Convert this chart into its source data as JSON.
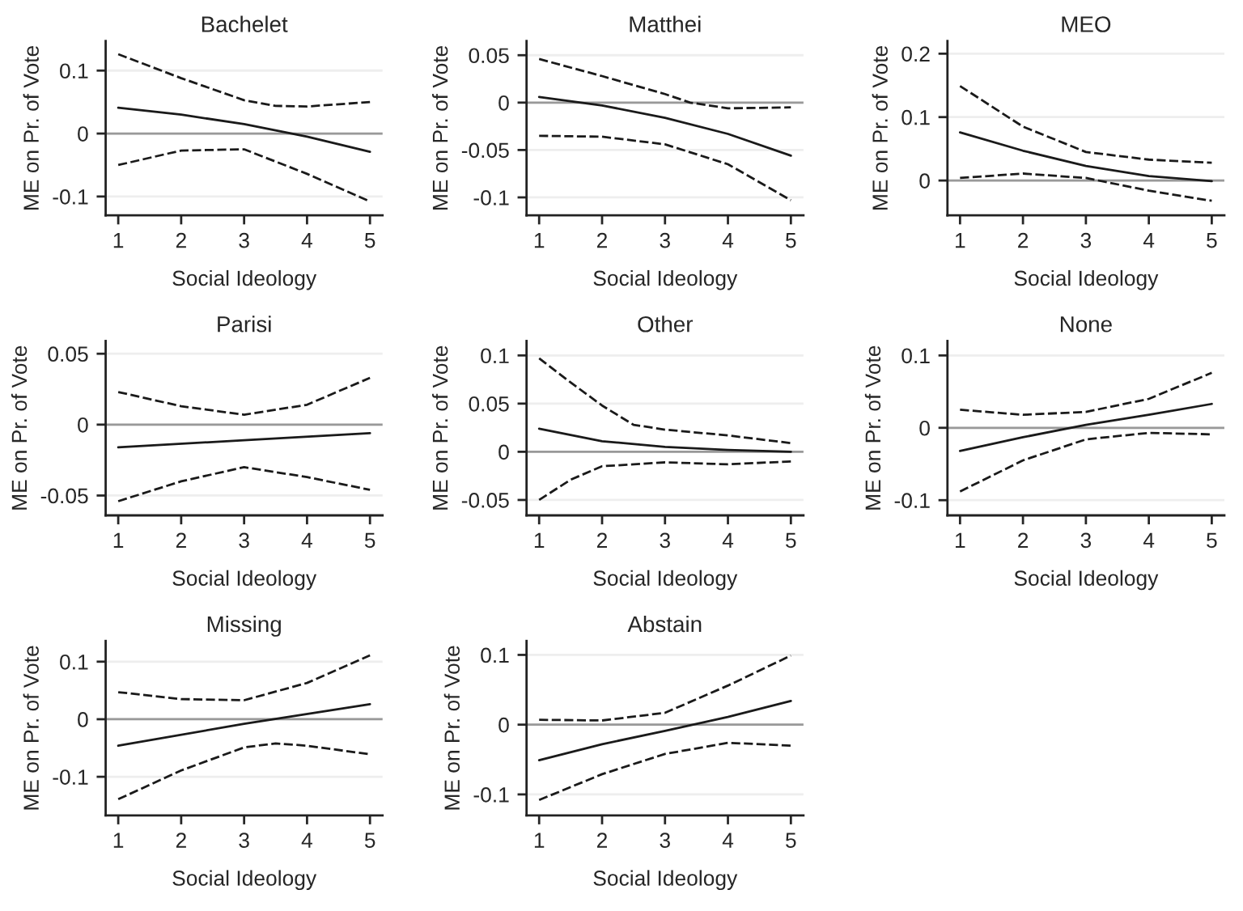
{
  "chart_data": [
    {
      "type": "line",
      "title": "Bachelet",
      "xlabel": "Social Ideology",
      "ylabel": "ME on Pr. of Vote",
      "xlim": [
        0.8,
        5.2
      ],
      "xticks": [
        1,
        2,
        3,
        4,
        5
      ],
      "ylim": [
        -0.13,
        0.147
      ],
      "yticks": [
        -0.1,
        0,
        0.1
      ],
      "grid": "y",
      "ref_lines": [
        {
          "axis": "y",
          "value": 0,
          "color": "#999999"
        }
      ],
      "series": [
        {
          "color": "#1a1a1a",
          "line_style": "solid",
          "x": [
            1,
            2,
            3,
            4,
            5
          ],
          "values": [
            0.041,
            0.03,
            0.015,
            -0.005,
            -0.029
          ]
        },
        {
          "color": "#1a1a1a",
          "line_style": "dashed",
          "x": [
            1,
            2,
            3,
            3.5,
            4,
            5
          ],
          "values": [
            0.126,
            0.088,
            0.053,
            0.044,
            0.043,
            0.05
          ]
        },
        {
          "color": "#1a1a1a",
          "line_style": "dashed",
          "x": [
            1,
            2,
            3,
            4,
            5
          ],
          "values": [
            -0.05,
            -0.027,
            -0.025,
            -0.064,
            -0.108
          ]
        }
      ]
    },
    {
      "type": "line",
      "title": "Matthei",
      "xlabel": "Social Ideology",
      "ylabel": "ME on Pr. of Vote",
      "xlim": [
        0.8,
        5.2
      ],
      "xticks": [
        1,
        2,
        3,
        4,
        5
      ],
      "ylim": [
        -0.119,
        0.065
      ],
      "yticks": [
        -0.1,
        -0.05,
        0,
        0.05
      ],
      "grid": "y",
      "ref_lines": [
        {
          "axis": "y",
          "value": 0,
          "color": "#999999"
        }
      ],
      "series": [
        {
          "color": "#1a1a1a",
          "line_style": "solid",
          "x": [
            1,
            2,
            3,
            4,
            5
          ],
          "values": [
            0.006,
            -0.003,
            -0.016,
            -0.033,
            -0.056
          ]
        },
        {
          "color": "#1a1a1a",
          "line_style": "dashed",
          "x": [
            1,
            2,
            3,
            3.4,
            4,
            5
          ],
          "values": [
            0.046,
            0.028,
            0.009,
            0,
            -0.006,
            -0.005
          ]
        },
        {
          "color": "#1a1a1a",
          "line_style": "dashed",
          "x": [
            1,
            2,
            3,
            4,
            5
          ],
          "values": [
            -0.035,
            -0.036,
            -0.044,
            -0.065,
            -0.103
          ]
        }
      ]
    },
    {
      "type": "line",
      "title": "MEO",
      "xlabel": "Social Ideology",
      "ylabel": "ME on Pr. of Vote",
      "xlim": [
        0.8,
        5.2
      ],
      "xticks": [
        1,
        2,
        3,
        4,
        5
      ],
      "ylim": [
        -0.055,
        0.22
      ],
      "yticks": [
        0,
        0.1,
        0.2
      ],
      "grid": "y",
      "ref_lines": [
        {
          "axis": "y",
          "value": 0,
          "color": "#999999"
        }
      ],
      "series": [
        {
          "color": "#1a1a1a",
          "line_style": "solid",
          "x": [
            1,
            2,
            3,
            4,
            5
          ],
          "values": [
            0.076,
            0.047,
            0.023,
            0.007,
            -0.001
          ]
        },
        {
          "color": "#1a1a1a",
          "line_style": "dashed",
          "x": [
            1,
            2,
            3,
            4,
            5
          ],
          "values": [
            0.149,
            0.085,
            0.045,
            0.033,
            0.028
          ]
        },
        {
          "color": "#1a1a1a",
          "line_style": "dashed",
          "x": [
            1,
            2,
            3,
            4,
            5
          ],
          "values": [
            0.004,
            0.011,
            0.004,
            -0.016,
            -0.032
          ]
        }
      ]
    },
    {
      "type": "line",
      "title": "Parisi",
      "xlabel": "Social Ideology",
      "ylabel": "ME on Pr. of Vote",
      "xlim": [
        0.8,
        5.2
      ],
      "xticks": [
        1,
        2,
        3,
        4,
        5
      ],
      "ylim": [
        -0.064,
        0.059
      ],
      "yticks": [
        -0.05,
        0,
        0.05
      ],
      "grid": "y",
      "ref_lines": [
        {
          "axis": "y",
          "value": 0,
          "color": "#999999"
        }
      ],
      "series": [
        {
          "color": "#1a1a1a",
          "line_style": "solid",
          "x": [
            1,
            3,
            5
          ],
          "values": [
            -0.016,
            -0.011,
            -0.006
          ]
        },
        {
          "color": "#1a1a1a",
          "line_style": "dashed",
          "x": [
            1,
            2,
            3,
            4,
            5
          ],
          "values": [
            0.023,
            0.013,
            0.007,
            0.014,
            0.033
          ]
        },
        {
          "color": "#1a1a1a",
          "line_style": "dashed",
          "x": [
            1,
            2,
            3,
            4,
            5
          ],
          "values": [
            -0.054,
            -0.04,
            -0.03,
            -0.037,
            -0.046
          ]
        }
      ]
    },
    {
      "type": "line",
      "title": "Other",
      "xlabel": "Social Ideology",
      "ylabel": "ME on Pr. of Vote",
      "xlim": [
        0.8,
        5.2
      ],
      "xticks": [
        1,
        2,
        3,
        4,
        5
      ],
      "ylim": [
        -0.066,
        0.115
      ],
      "yticks": [
        -0.05,
        0,
        0.05,
        0.1
      ],
      "grid": "y",
      "ref_lines": [
        {
          "axis": "y",
          "value": 0,
          "color": "#999999"
        }
      ],
      "series": [
        {
          "color": "#1a1a1a",
          "line_style": "solid",
          "x": [
            1,
            2,
            3,
            4,
            5
          ],
          "values": [
            0.024,
            0.011,
            0.005,
            0.002,
            0
          ]
        },
        {
          "color": "#1a1a1a",
          "line_style": "dashed",
          "x": [
            1,
            1.5,
            2,
            2.5,
            3,
            4,
            5
          ],
          "values": [
            0.097,
            0.072,
            0.048,
            0.028,
            0.023,
            0.017,
            0.009
          ]
        },
        {
          "color": "#1a1a1a",
          "line_style": "dashed",
          "x": [
            1,
            1.5,
            2,
            3,
            4,
            5
          ],
          "values": [
            -0.05,
            -0.029,
            -0.015,
            -0.011,
            -0.013,
            -0.01
          ]
        }
      ]
    },
    {
      "type": "line",
      "title": "None",
      "xlabel": "Social Ideology",
      "ylabel": "ME on Pr. of Vote",
      "xlim": [
        0.8,
        5.2
      ],
      "xticks": [
        1,
        2,
        3,
        4,
        5
      ],
      "ylim": [
        -0.121,
        0.12
      ],
      "yticks": [
        -0.1,
        0,
        0.1
      ],
      "grid": "y",
      "ref_lines": [
        {
          "axis": "y",
          "value": 0,
          "color": "#999999"
        }
      ],
      "series": [
        {
          "color": "#1a1a1a",
          "line_style": "solid",
          "x": [
            1,
            2,
            3,
            4,
            5
          ],
          "values": [
            -0.032,
            -0.013,
            0.004,
            0.018,
            0.033
          ]
        },
        {
          "color": "#1a1a1a",
          "line_style": "dashed",
          "x": [
            1,
            2,
            3,
            4,
            5
          ],
          "values": [
            0.025,
            0.018,
            0.022,
            0.04,
            0.076
          ]
        },
        {
          "color": "#1a1a1a",
          "line_style": "dashed",
          "x": [
            1,
            2,
            3,
            4,
            5
          ],
          "values": [
            -0.088,
            -0.045,
            -0.016,
            -0.007,
            -0.009
          ]
        }
      ]
    },
    {
      "type": "line",
      "title": "Missing",
      "xlabel": "Social Ideology",
      "ylabel": "ME on Pr. of Vote",
      "xlim": [
        0.8,
        5.2
      ],
      "xticks": [
        1,
        2,
        3,
        4,
        5
      ],
      "ylim": [
        -0.167,
        0.136
      ],
      "yticks": [
        -0.1,
        0,
        0.1
      ],
      "grid": "y",
      "ref_lines": [
        {
          "axis": "y",
          "value": 0,
          "color": "#999999"
        }
      ],
      "series": [
        {
          "color": "#1a1a1a",
          "line_style": "solid",
          "x": [
            1,
            3,
            5
          ],
          "values": [
            -0.046,
            -0.008,
            0.026
          ]
        },
        {
          "color": "#1a1a1a",
          "line_style": "dashed",
          "x": [
            1,
            2,
            3,
            4,
            5
          ],
          "values": [
            0.047,
            0.035,
            0.033,
            0.063,
            0.111
          ]
        },
        {
          "color": "#1a1a1a",
          "line_style": "dashed",
          "x": [
            1,
            2,
            3,
            3.5,
            4,
            5
          ],
          "values": [
            -0.139,
            -0.089,
            -0.049,
            -0.042,
            -0.046,
            -0.061
          ]
        }
      ]
    },
    {
      "type": "line",
      "title": "Abstain",
      "xlabel": "Social Ideology",
      "ylabel": "ME on Pr. of Vote",
      "xlim": [
        0.8,
        5.2
      ],
      "xticks": [
        1,
        2,
        3,
        4,
        5
      ],
      "ylim": [
        -0.13,
        0.12
      ],
      "yticks": [
        -0.1,
        0,
        0.1
      ],
      "grid": "y",
      "ref_lines": [
        {
          "axis": "y",
          "value": 0,
          "color": "#999999"
        }
      ],
      "series": [
        {
          "color": "#1a1a1a",
          "line_style": "solid",
          "x": [
            1,
            2,
            3,
            4,
            5
          ],
          "values": [
            -0.051,
            -0.028,
            -0.009,
            0.011,
            0.034
          ]
        },
        {
          "color": "#1a1a1a",
          "line_style": "dashed",
          "x": [
            1,
            2,
            3,
            4,
            5
          ],
          "values": [
            0.007,
            0.006,
            0.017,
            0.056,
            0.099
          ]
        },
        {
          "color": "#1a1a1a",
          "line_style": "dashed",
          "x": [
            1,
            2,
            3,
            4,
            5
          ],
          "values": [
            -0.108,
            -0.071,
            -0.042,
            -0.026,
            -0.03
          ]
        }
      ]
    }
  ]
}
